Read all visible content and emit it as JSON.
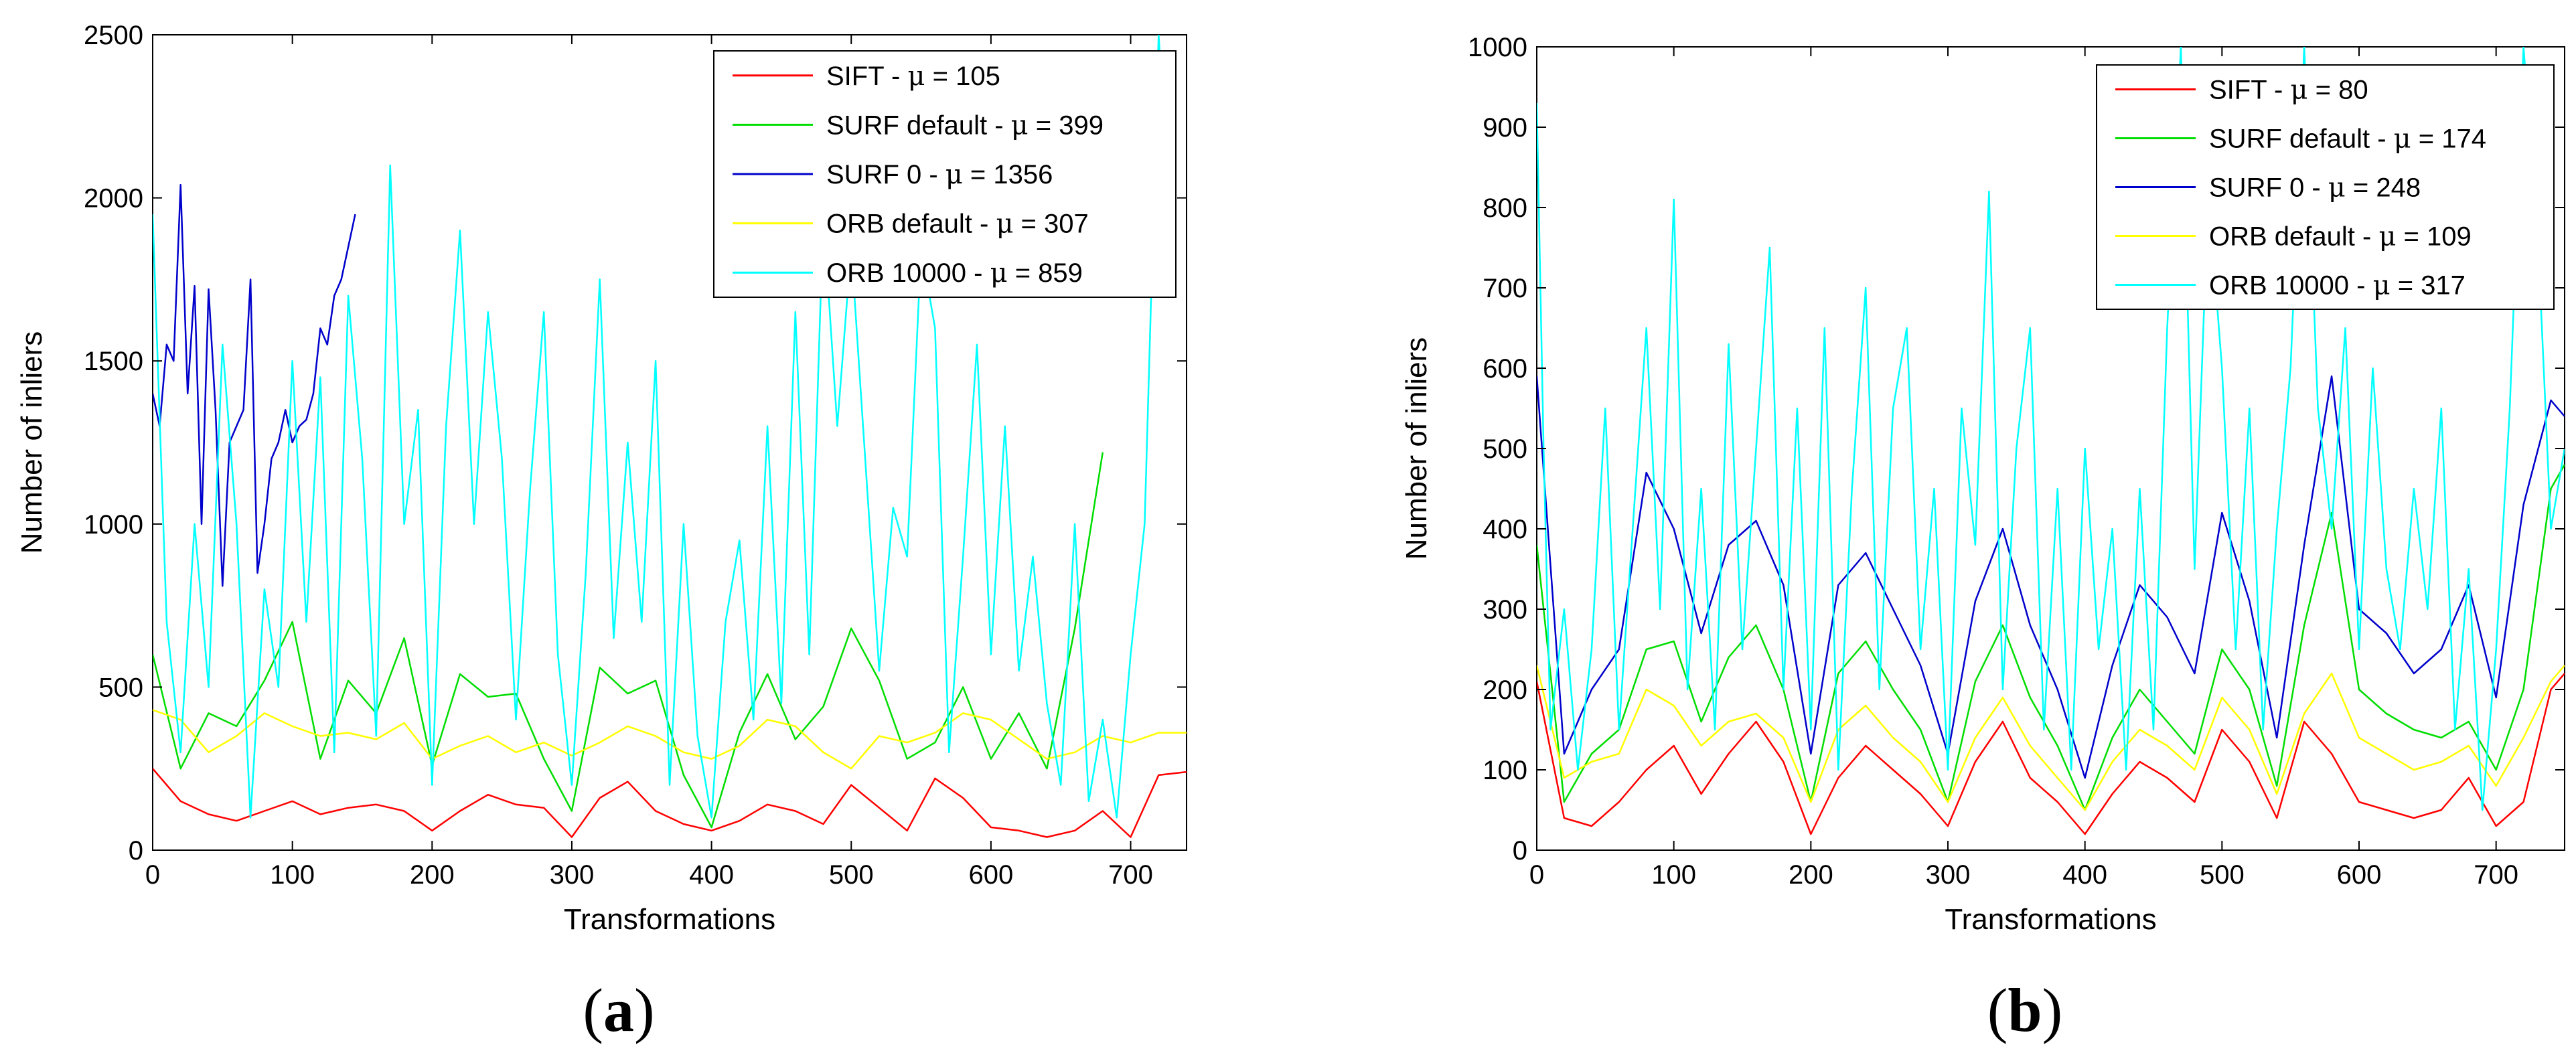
{
  "chart_data": [
    {
      "type": "line",
      "panel_label": {
        "open": "(",
        "letter": "a",
        "close": ")"
      },
      "xlabel": "Transformations",
      "ylabel": "Number of inliers",
      "xlim": [
        0,
        740
      ],
      "ylim": [
        0,
        2500
      ],
      "xticks": [
        0,
        100,
        200,
        300,
        400,
        500,
        600,
        700
      ],
      "yticks": [
        0,
        500,
        1000,
        1500,
        2000,
        2500
      ],
      "legend_position": "top-right",
      "series": [
        {
          "name": "SIFT",
          "label_prefix": "SIFT - ",
          "mu": "105",
          "color": "#ff0000",
          "x": [
            0,
            20,
            40,
            60,
            80,
            100,
            120,
            140,
            160,
            180,
            200,
            220,
            240,
            260,
            280,
            300,
            320,
            340,
            360,
            380,
            400,
            420,
            440,
            460,
            480,
            500,
            520,
            540,
            560,
            580,
            600,
            620,
            640,
            660,
            680,
            700,
            720,
            740
          ],
          "y": [
            250,
            150,
            110,
            90,
            120,
            150,
            110,
            130,
            140,
            120,
            60,
            120,
            170,
            140,
            130,
            40,
            160,
            210,
            120,
            80,
            60,
            90,
            140,
            120,
            80,
            200,
            130,
            60,
            220,
            160,
            70,
            60,
            40,
            60,
            120,
            40,
            230,
            240
          ]
        },
        {
          "name": "SURF default",
          "label_prefix": "SURF default - ",
          "mu": "399",
          "color": "#00dd00",
          "x": [
            0,
            20,
            40,
            60,
            80,
            100,
            120,
            140,
            160,
            180,
            200,
            220,
            240,
            260,
            280,
            300,
            320,
            340,
            360,
            380,
            400,
            420,
            440,
            460,
            480,
            500,
            520,
            540,
            560,
            580,
            600,
            620,
            640,
            660,
            680
          ],
          "y": [
            600,
            250,
            420,
            380,
            520,
            700,
            280,
            520,
            420,
            650,
            260,
            540,
            470,
            480,
            280,
            120,
            560,
            480,
            520,
            230,
            70,
            360,
            540,
            340,
            440,
            680,
            520,
            280,
            330,
            500,
            280,
            420,
            250,
            680,
            1220
          ]
        },
        {
          "name": "SURF 0",
          "label_prefix": "SURF 0 - ",
          "mu": "1356",
          "color": "#0000cc",
          "x": [
            0,
            5,
            10,
            15,
            20,
            25,
            30,
            35,
            40,
            45,
            50,
            55,
            60,
            65,
            70,
            75,
            80,
            85,
            90,
            95,
            100,
            105,
            110,
            115,
            120,
            125,
            130,
            135,
            140,
            145
          ],
          "y": [
            1400,
            1300,
            1550,
            1500,
            2040,
            1400,
            1730,
            1000,
            1720,
            1350,
            810,
            1250,
            1300,
            1350,
            1750,
            850,
            1000,
            1200,
            1250,
            1350,
            1250,
            1300,
            1320,
            1400,
            1600,
            1550,
            1700,
            1750,
            1850,
            1950
          ]
        },
        {
          "name": "ORB default",
          "label_prefix": "ORB default - ",
          "mu": "307",
          "color": "#ffff00",
          "x": [
            0,
            20,
            40,
            60,
            80,
            100,
            120,
            140,
            160,
            180,
            200,
            220,
            240,
            260,
            280,
            300,
            320,
            340,
            360,
            380,
            400,
            420,
            440,
            460,
            480,
            500,
            520,
            540,
            560,
            580,
            600,
            620,
            640,
            660,
            680,
            700,
            720,
            740
          ],
          "y": [
            430,
            400,
            300,
            350,
            420,
            380,
            350,
            360,
            340,
            390,
            280,
            320,
            350,
            300,
            330,
            290,
            330,
            380,
            350,
            300,
            280,
            320,
            400,
            380,
            300,
            250,
            350,
            330,
            360,
            420,
            400,
            340,
            280,
            300,
            350,
            330,
            360,
            360
          ]
        },
        {
          "name": "ORB 10000",
          "label_prefix": "ORB 10000 - ",
          "mu": "859",
          "color": "#00ffff",
          "x": [
            0,
            10,
            20,
            30,
            40,
            50,
            60,
            70,
            80,
            90,
            100,
            110,
            120,
            130,
            140,
            150,
            160,
            170,
            180,
            190,
            200,
            210,
            220,
            230,
            240,
            250,
            260,
            270,
            280,
            290,
            300,
            310,
            320,
            330,
            340,
            350,
            360,
            370,
            380,
            390,
            400,
            410,
            420,
            430,
            440,
            450,
            460,
            470,
            480,
            490,
            500,
            510,
            520,
            530,
            540,
            550,
            560,
            570,
            580,
            590,
            600,
            610,
            620,
            630,
            640,
            650,
            660,
            670,
            680,
            690,
            700,
            710,
            720,
            730
          ],
          "y": [
            1950,
            700,
            300,
            1000,
            500,
            1550,
            1000,
            100,
            800,
            500,
            1500,
            700,
            1450,
            300,
            1700,
            1200,
            350,
            2100,
            1000,
            1350,
            200,
            1300,
            1900,
            1000,
            1650,
            1200,
            400,
            1100,
            1650,
            600,
            200,
            850,
            1750,
            650,
            1250,
            700,
            1500,
            200,
            1000,
            350,
            100,
            700,
            950,
            400,
            1300,
            450,
            1650,
            600,
            1950,
            1300,
            1850,
            1200,
            550,
            1050,
            900,
            1850,
            1600,
            300,
            900,
            1550,
            600,
            1300,
            550,
            900,
            450,
            200,
            1000,
            150,
            400,
            100,
            600,
            1000,
            2500,
            1800
          ]
        }
      ]
    },
    {
      "type": "line",
      "panel_label": {
        "open": "(",
        "letter": "b",
        "close": ")"
      },
      "xlabel": "Transformations",
      "ylabel": "Number of inliers",
      "xlim": [
        0,
        750
      ],
      "ylim": [
        0,
        1000
      ],
      "xticks": [
        0,
        100,
        200,
        300,
        400,
        500,
        600,
        700
      ],
      "yticks": [
        0,
        100,
        200,
        300,
        400,
        500,
        600,
        700,
        800,
        900,
        1000
      ],
      "legend_position": "top-right",
      "series": [
        {
          "name": "SIFT",
          "label_prefix": "SIFT - ",
          "mu": "80",
          "color": "#ff0000",
          "x": [
            0,
            20,
            40,
            60,
            80,
            100,
            120,
            140,
            160,
            180,
            200,
            220,
            240,
            260,
            280,
            300,
            320,
            340,
            360,
            380,
            400,
            420,
            440,
            460,
            480,
            500,
            520,
            540,
            560,
            580,
            600,
            620,
            640,
            660,
            680,
            700,
            720,
            740,
            750
          ],
          "y": [
            210,
            40,
            30,
            60,
            100,
            130,
            70,
            120,
            160,
            110,
            20,
            90,
            130,
            100,
            70,
            30,
            110,
            160,
            90,
            60,
            20,
            70,
            110,
            90,
            60,
            150,
            110,
            40,
            160,
            120,
            60,
            50,
            40,
            50,
            90,
            30,
            60,
            200,
            220
          ]
        },
        {
          "name": "SURF default",
          "label_prefix": "SURF default - ",
          "mu": "174",
          "color": "#00dd00",
          "x": [
            0,
            20,
            40,
            60,
            80,
            100,
            120,
            140,
            160,
            180,
            200,
            220,
            240,
            260,
            280,
            300,
            320,
            340,
            360,
            380,
            400,
            420,
            440,
            460,
            480,
            500,
            520,
            540,
            560,
            580,
            600,
            620,
            640,
            660,
            680,
            700,
            720,
            740,
            750
          ],
          "y": [
            380,
            60,
            120,
            150,
            250,
            260,
            160,
            240,
            280,
            200,
            60,
            220,
            260,
            200,
            150,
            60,
            210,
            280,
            190,
            130,
            50,
            140,
            200,
            160,
            120,
            250,
            200,
            80,
            280,
            420,
            200,
            170,
            150,
            140,
            160,
            100,
            200,
            450,
            480
          ]
        },
        {
          "name": "SURF 0",
          "label_prefix": "SURF 0 - ",
          "mu": "248",
          "color": "#0000cc",
          "x": [
            0,
            20,
            40,
            60,
            80,
            100,
            120,
            140,
            160,
            180,
            200,
            220,
            240,
            260,
            280,
            300,
            320,
            340,
            360,
            380,
            400,
            420,
            440,
            460,
            480,
            500,
            520,
            540,
            560,
            580,
            600,
            620,
            640,
            660,
            680,
            700,
            720,
            740,
            750
          ],
          "y": [
            590,
            120,
            200,
            250,
            470,
            400,
            270,
            380,
            410,
            330,
            120,
            330,
            370,
            300,
            230,
            120,
            310,
            400,
            280,
            200,
            90,
            230,
            330,
            290,
            220,
            420,
            310,
            140,
            380,
            590,
            300,
            270,
            220,
            250,
            330,
            190,
            430,
            560,
            540
          ]
        },
        {
          "name": "ORB default",
          "label_prefix": "ORB default - ",
          "mu": "109",
          "color": "#ffff00",
          "x": [
            0,
            20,
            40,
            60,
            80,
            100,
            120,
            140,
            160,
            180,
            200,
            220,
            240,
            260,
            280,
            300,
            320,
            340,
            360,
            380,
            400,
            420,
            440,
            460,
            480,
            500,
            520,
            540,
            560,
            580,
            600,
            620,
            640,
            660,
            680,
            700,
            720,
            740,
            750
          ],
          "y": [
            230,
            90,
            110,
            120,
            200,
            180,
            130,
            160,
            170,
            140,
            60,
            150,
            180,
            140,
            110,
            60,
            140,
            190,
            130,
            90,
            50,
            110,
            150,
            130,
            100,
            190,
            150,
            70,
            170,
            220,
            140,
            120,
            100,
            110,
            130,
            80,
            140,
            210,
            230
          ]
        },
        {
          "name": "ORB 10000",
          "label_prefix": "ORB 10000 - ",
          "mu": "317",
          "color": "#00ffff",
          "x": [
            0,
            5,
            10,
            20,
            30,
            40,
            50,
            60,
            70,
            80,
            90,
            100,
            110,
            120,
            130,
            140,
            150,
            160,
            170,
            180,
            190,
            200,
            210,
            220,
            230,
            240,
            250,
            260,
            270,
            280,
            290,
            300,
            310,
            320,
            330,
            340,
            350,
            360,
            370,
            380,
            390,
            400,
            410,
            420,
            430,
            440,
            450,
            460,
            470,
            480,
            490,
            500,
            510,
            520,
            530,
            540,
            550,
            560,
            570,
            580,
            590,
            600,
            610,
            620,
            630,
            640,
            650,
            660,
            670,
            680,
            690,
            700,
            710,
            720,
            730,
            740,
            750
          ],
          "y": [
            930,
            500,
            150,
            300,
            100,
            250,
            550,
            150,
            400,
            650,
            300,
            810,
            200,
            450,
            150,
            630,
            250,
            500,
            750,
            200,
            550,
            150,
            650,
            100,
            450,
            700,
            200,
            550,
            650,
            250,
            450,
            100,
            550,
            380,
            820,
            200,
            500,
            650,
            150,
            450,
            100,
            500,
            250,
            400,
            100,
            450,
            150,
            650,
            1000,
            350,
            820,
            600,
            250,
            550,
            150,
            400,
            600,
            1000,
            550,
            400,
            650,
            250,
            600,
            350,
            250,
            450,
            300,
            550,
            150,
            350,
            50,
            250,
            550,
            1000,
            780,
            400,
            500
          ]
        }
      ]
    }
  ]
}
